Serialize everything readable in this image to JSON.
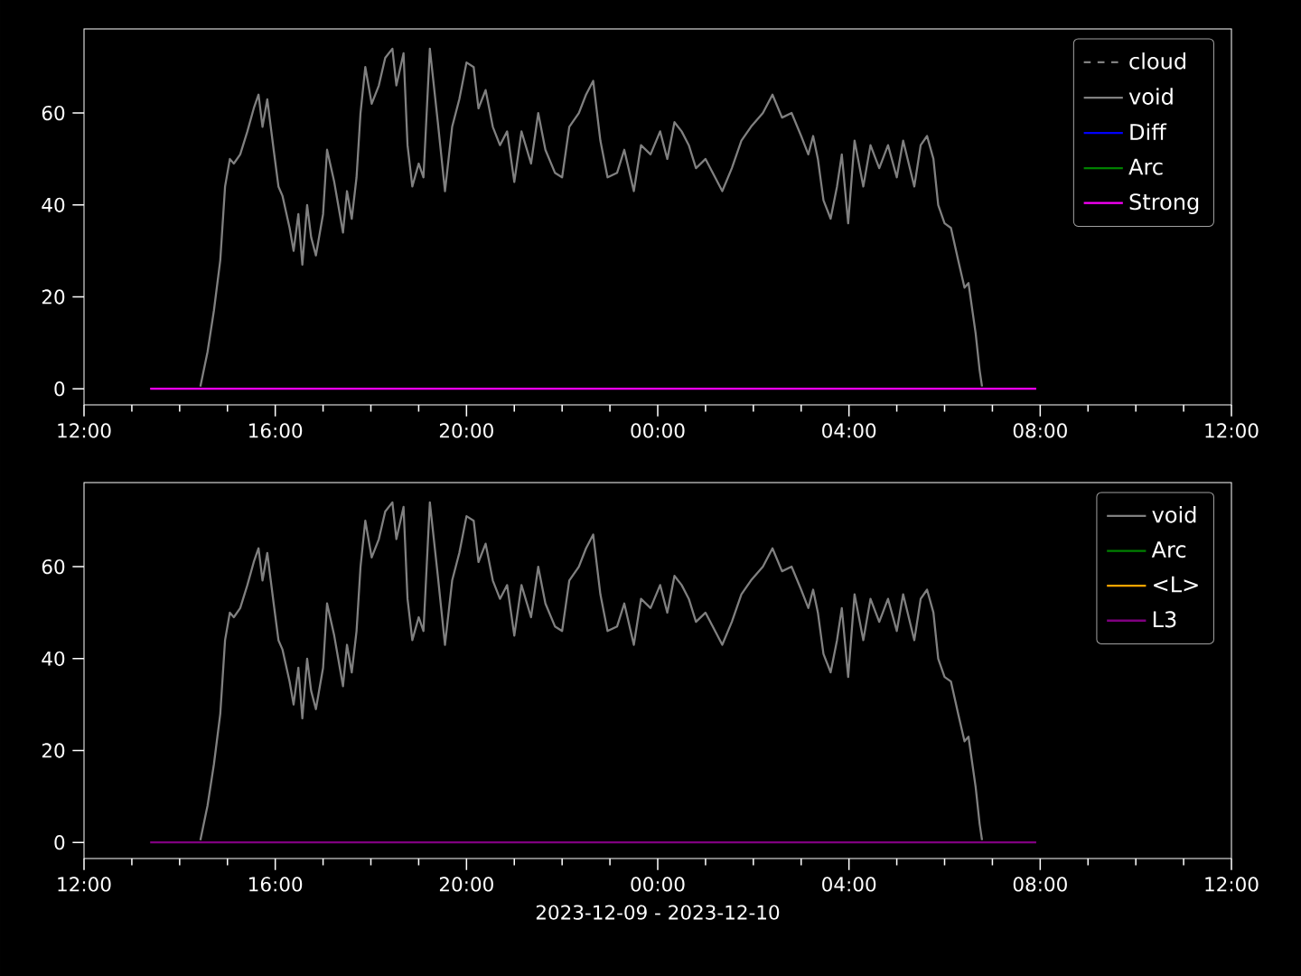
{
  "chart_data": [
    {
      "type": "line",
      "xlim": [
        "2023-12-09T12:00",
        "2023-12-10T12:00"
      ],
      "ylim": [
        -3.5,
        78.3
      ],
      "xticks": [
        {
          "value": "2023-12-09T12:00",
          "label": "12:00"
        },
        {
          "value": "2023-12-09T16:00",
          "label": "16:00"
        },
        {
          "value": "2023-12-09T20:00",
          "label": "20:00"
        },
        {
          "value": "2023-12-10T00:00",
          "label": "00:00"
        },
        {
          "value": "2023-12-10T04:00",
          "label": "04:00"
        },
        {
          "value": "2023-12-10T08:00",
          "label": "08:00"
        },
        {
          "value": "2023-12-10T12:00",
          "label": "12:00"
        }
      ],
      "yticks": [
        0,
        20,
        40,
        60
      ],
      "legend": "top right",
      "series": [
        {
          "name": "cloud",
          "color": "#808080",
          "line_style": "dashed"
        },
        {
          "name": "void",
          "color": "#808080",
          "x": [
            "2023-12-09T14:26",
            "2023-12-09T14:35",
            "2023-12-09T14:43",
            "2023-12-09T14:51",
            "2023-12-09T14:57",
            "2023-12-09T15:03",
            "2023-12-09T15:08",
            "2023-12-09T15:16",
            "2023-12-09T15:25",
            "2023-12-09T15:33",
            "2023-12-09T15:39",
            "2023-12-09T15:44",
            "2023-12-09T15:50",
            "2023-12-09T15:58",
            "2023-12-09T16:04",
            "2023-12-09T16:09",
            "2023-12-09T16:18",
            "2023-12-09T16:23",
            "2023-12-09T16:29",
            "2023-12-09T16:34",
            "2023-12-09T16:40",
            "2023-12-09T16:45",
            "2023-12-09T16:51",
            "2023-12-09T17:00",
            "2023-12-09T17:05",
            "2023-12-09T17:14",
            "2023-12-09T17:19",
            "2023-12-09T17:25",
            "2023-12-09T17:30",
            "2023-12-09T17:36",
            "2023-12-09T17:42",
            "2023-12-09T17:47",
            "2023-12-09T17:53",
            "2023-12-09T18:01",
            "2023-12-09T18:10",
            "2023-12-09T18:18",
            "2023-12-09T18:27",
            "2023-12-09T18:32",
            "2023-12-09T18:41",
            "2023-12-09T18:46",
            "2023-12-09T18:52",
            "2023-12-09T19:00",
            "2023-12-09T19:06",
            "2023-12-09T19:14",
            "2023-12-09T19:24",
            "2023-12-09T19:33",
            "2023-12-09T19:42",
            "2023-12-09T19:51",
            "2023-12-09T20:00",
            "2023-12-09T20:09",
            "2023-12-09T20:15",
            "2023-12-09T20:24",
            "2023-12-09T20:33",
            "2023-12-09T20:42",
            "2023-12-09T20:51",
            "2023-12-09T21:00",
            "2023-12-09T21:09",
            "2023-12-09T21:21",
            "2023-12-09T21:30",
            "2023-12-09T21:39",
            "2023-12-09T21:51",
            "2023-12-09T22:00",
            "2023-12-09T22:09",
            "2023-12-09T22:21",
            "2023-12-09T22:30",
            "2023-12-09T22:39",
            "2023-12-09T22:48",
            "2023-12-09T22:57",
            "2023-12-09T23:09",
            "2023-12-09T23:18",
            "2023-12-09T23:30",
            "2023-12-09T23:39",
            "2023-12-09T23:51",
            "2023-12-10T00:03",
            "2023-12-10T00:12",
            "2023-12-10T00:21",
            "2023-12-10T00:30",
            "2023-12-10T00:39",
            "2023-12-10T00:48",
            "2023-12-10T01:00",
            "2023-12-10T01:12",
            "2023-12-10T01:21",
            "2023-12-10T01:33",
            "2023-12-10T01:45",
            "2023-12-10T01:57",
            "2023-12-10T02:12",
            "2023-12-10T02:24",
            "2023-12-10T02:36",
            "2023-12-10T02:48",
            "2023-12-10T03:00",
            "2023-12-10T03:09",
            "2023-12-10T03:15",
            "2023-12-10T03:21",
            "2023-12-10T03:28",
            "2023-12-10T03:37",
            "2023-12-10T03:45",
            "2023-12-10T03:51",
            "2023-12-10T03:59",
            "2023-12-10T04:07",
            "2023-12-10T04:18",
            "2023-12-10T04:27",
            "2023-12-10T04:38",
            "2023-12-10T04:49",
            "2023-12-10T05:00",
            "2023-12-10T05:08",
            "2023-12-10T05:22",
            "2023-12-10T05:30",
            "2023-12-10T05:38",
            "2023-12-10T05:46",
            "2023-12-10T05:52",
            "2023-12-10T06:00",
            "2023-12-10T06:08",
            "2023-12-10T06:17",
            "2023-12-10T06:25",
            "2023-12-10T06:30",
            "2023-12-10T06:39",
            "2023-12-10T06:44",
            "2023-12-10T06:47"
          ],
          "values": [
            0.5,
            8,
            17,
            28,
            44,
            50,
            49,
            51,
            56,
            61,
            64,
            57,
            63,
            52,
            44,
            42,
            35,
            30,
            38,
            27,
            40,
            33,
            29,
            38,
            52,
            45,
            40,
            34,
            43,
            37,
            46,
            60,
            70,
            62,
            66,
            72,
            74,
            66,
            73,
            53,
            44,
            49,
            46,
            74,
            58,
            43,
            57,
            63,
            71,
            70,
            61,
            65,
            57,
            53,
            56,
            45,
            56,
            49,
            60,
            52,
            47,
            46,
            57,
            60,
            64,
            67,
            54,
            46,
            47,
            52,
            43,
            53,
            51,
            56,
            50,
            58,
            56,
            53,
            48,
            50,
            46,
            43,
            48,
            54,
            57,
            60,
            64,
            59,
            60,
            55,
            51,
            55,
            50,
            41,
            37,
            44,
            51,
            36,
            54,
            44,
            53,
            48,
            53,
            46,
            54,
            44,
            53,
            55,
            50,
            40,
            36,
            35,
            28,
            22,
            23,
            12,
            4,
            0.5
          ]
        },
        {
          "name": "Diff",
          "color": "#0000ff"
        },
        {
          "name": "Arc",
          "color": "#008000"
        },
        {
          "name": "Strong",
          "color": "#ff00ff",
          "x": [
            "2023-12-09T13:23",
            "2023-12-10T07:55"
          ],
          "values": [
            0,
            0
          ]
        }
      ]
    },
    {
      "type": "line",
      "xlim": [
        "2023-12-09T12:00",
        "2023-12-10T12:00"
      ],
      "ylim": [
        -3.5,
        78.3
      ],
      "xlabel": "2023-12-09 - 2023-12-10",
      "xticks": [
        {
          "value": "2023-12-09T12:00",
          "label": "12:00"
        },
        {
          "value": "2023-12-09T16:00",
          "label": "16:00"
        },
        {
          "value": "2023-12-09T20:00",
          "label": "20:00"
        },
        {
          "value": "2023-12-10T00:00",
          "label": "00:00"
        },
        {
          "value": "2023-12-10T04:00",
          "label": "04:00"
        },
        {
          "value": "2023-12-10T08:00",
          "label": "08:00"
        },
        {
          "value": "2023-12-10T12:00",
          "label": "12:00"
        }
      ],
      "yticks": [
        0,
        20,
        40,
        60
      ],
      "legend": "top right",
      "series": [
        {
          "name": "void",
          "color": "#808080",
          "x": [
            "2023-12-09T14:26",
            "2023-12-09T14:35",
            "2023-12-09T14:43",
            "2023-12-09T14:51",
            "2023-12-09T14:57",
            "2023-12-09T15:03",
            "2023-12-09T15:08",
            "2023-12-09T15:16",
            "2023-12-09T15:25",
            "2023-12-09T15:33",
            "2023-12-09T15:39",
            "2023-12-09T15:44",
            "2023-12-09T15:50",
            "2023-12-09T15:58",
            "2023-12-09T16:04",
            "2023-12-09T16:09",
            "2023-12-09T16:18",
            "2023-12-09T16:23",
            "2023-12-09T16:29",
            "2023-12-09T16:34",
            "2023-12-09T16:40",
            "2023-12-09T16:45",
            "2023-12-09T16:51",
            "2023-12-09T17:00",
            "2023-12-09T17:05",
            "2023-12-09T17:14",
            "2023-12-09T17:19",
            "2023-12-09T17:25",
            "2023-12-09T17:30",
            "2023-12-09T17:36",
            "2023-12-09T17:42",
            "2023-12-09T17:47",
            "2023-12-09T17:53",
            "2023-12-09T18:01",
            "2023-12-09T18:10",
            "2023-12-09T18:18",
            "2023-12-09T18:27",
            "2023-12-09T18:32",
            "2023-12-09T18:41",
            "2023-12-09T18:46",
            "2023-12-09T18:52",
            "2023-12-09T19:00",
            "2023-12-09T19:06",
            "2023-12-09T19:14",
            "2023-12-09T19:24",
            "2023-12-09T19:33",
            "2023-12-09T19:42",
            "2023-12-09T19:51",
            "2023-12-09T20:00",
            "2023-12-09T20:09",
            "2023-12-09T20:15",
            "2023-12-09T20:24",
            "2023-12-09T20:33",
            "2023-12-09T20:42",
            "2023-12-09T20:51",
            "2023-12-09T21:00",
            "2023-12-09T21:09",
            "2023-12-09T21:21",
            "2023-12-09T21:30",
            "2023-12-09T21:39",
            "2023-12-09T21:51",
            "2023-12-09T22:00",
            "2023-12-09T22:09",
            "2023-12-09T22:21",
            "2023-12-09T22:30",
            "2023-12-09T22:39",
            "2023-12-09T22:48",
            "2023-12-09T22:57",
            "2023-12-09T23:09",
            "2023-12-09T23:18",
            "2023-12-09T23:30",
            "2023-12-09T23:39",
            "2023-12-09T23:51",
            "2023-12-10T00:03",
            "2023-12-10T00:12",
            "2023-12-10T00:21",
            "2023-12-10T00:30",
            "2023-12-10T00:39",
            "2023-12-10T00:48",
            "2023-12-10T01:00",
            "2023-12-10T01:12",
            "2023-12-10T01:21",
            "2023-12-10T01:33",
            "2023-12-10T01:45",
            "2023-12-10T01:57",
            "2023-12-10T02:12",
            "2023-12-10T02:24",
            "2023-12-10T02:36",
            "2023-12-10T02:48",
            "2023-12-10T03:00",
            "2023-12-10T03:09",
            "2023-12-10T03:15",
            "2023-12-10T03:21",
            "2023-12-10T03:28",
            "2023-12-10T03:37",
            "2023-12-10T03:45",
            "2023-12-10T03:51",
            "2023-12-10T03:59",
            "2023-12-10T04:07",
            "2023-12-10T04:18",
            "2023-12-10T04:27",
            "2023-12-10T04:38",
            "2023-12-10T04:49",
            "2023-12-10T05:00",
            "2023-12-10T05:08",
            "2023-12-10T05:22",
            "2023-12-10T05:30",
            "2023-12-10T05:38",
            "2023-12-10T05:46",
            "2023-12-10T05:52",
            "2023-12-10T06:00",
            "2023-12-10T06:08",
            "2023-12-10T06:17",
            "2023-12-10T06:25",
            "2023-12-10T06:30",
            "2023-12-10T06:39",
            "2023-12-10T06:44",
            "2023-12-10T06:47"
          ],
          "values": [
            0.5,
            8,
            17,
            28,
            44,
            50,
            49,
            51,
            56,
            61,
            64,
            57,
            63,
            52,
            44,
            42,
            35,
            30,
            38,
            27,
            40,
            33,
            29,
            38,
            52,
            45,
            40,
            34,
            43,
            37,
            46,
            60,
            70,
            62,
            66,
            72,
            74,
            66,
            73,
            53,
            44,
            49,
            46,
            74,
            58,
            43,
            57,
            63,
            71,
            70,
            61,
            65,
            57,
            53,
            56,
            45,
            56,
            49,
            60,
            52,
            47,
            46,
            57,
            60,
            64,
            67,
            54,
            46,
            47,
            52,
            43,
            53,
            51,
            56,
            50,
            58,
            56,
            53,
            48,
            50,
            46,
            43,
            48,
            54,
            57,
            60,
            64,
            59,
            60,
            55,
            51,
            55,
            50,
            41,
            37,
            44,
            51,
            36,
            54,
            44,
            53,
            48,
            53,
            46,
            54,
            44,
            53,
            55,
            50,
            40,
            36,
            35,
            28,
            22,
            23,
            12,
            4,
            0.5
          ]
        },
        {
          "name": "Arc",
          "color": "#008000"
        },
        {
          "name": "<L>",
          "color": "#ffa500"
        },
        {
          "name": "L3",
          "color": "#800080",
          "x": [
            "2023-12-09T13:23",
            "2023-12-10T07:55"
          ],
          "values": [
            0,
            0
          ]
        }
      ]
    }
  ]
}
